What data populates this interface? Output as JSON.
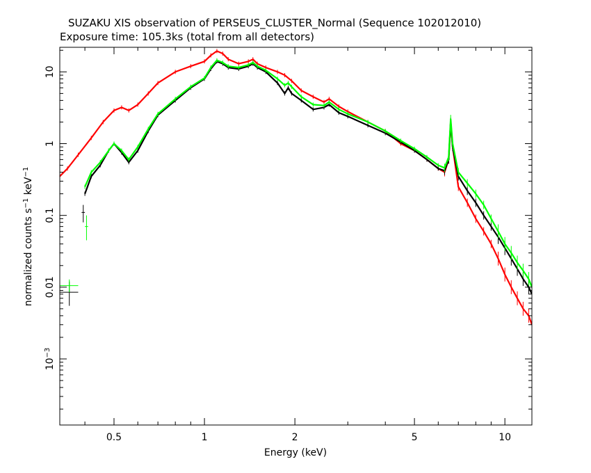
{
  "chart_data": {
    "type": "line",
    "title": "SUZAKU XIS observation of PERSEUS_CLUSTER_Normal (Sequence 102012010)",
    "subtitle": "Exposure time: 105.3ks (total from all detectors)",
    "xlabel": "Energy (keV)",
    "ylabel": "normalized counts s⁻¹ keV⁻¹",
    "ylabel_parts": {
      "a": "normalized counts s",
      "sup1": "−1",
      "b": " keV",
      "sup2": "−1"
    },
    "xscale": "log",
    "yscale": "log",
    "xlim": [
      0.33,
      12.3
    ],
    "ylim": [
      0.00012,
      22
    ],
    "xticks": [
      {
        "value": 0.5,
        "label": "0.5"
      },
      {
        "value": 1,
        "label": "1"
      },
      {
        "value": 2,
        "label": "2"
      },
      {
        "value": 5,
        "label": "5"
      },
      {
        "value": 10,
        "label": "10"
      }
    ],
    "yticks": [
      {
        "value": 10,
        "label": "10",
        "sup": ""
      },
      {
        "value": 1,
        "label": "1",
        "sup": ""
      },
      {
        "value": 0.1,
        "label": "0.1",
        "sup": ""
      },
      {
        "value": 0.01,
        "label": "0.01",
        "sup": ""
      },
      {
        "value": 0.001,
        "label": "10",
        "sup": "−3"
      }
    ],
    "grid": false,
    "series": [
      {
        "color": "#ff0000",
        "x": [
          0.33,
          0.35,
          0.38,
          0.42,
          0.46,
          0.5,
          0.53,
          0.56,
          0.6,
          0.65,
          0.7,
          0.8,
          0.9,
          1.0,
          1.05,
          1.1,
          1.15,
          1.2,
          1.3,
          1.4,
          1.45,
          1.5,
          1.6,
          1.75,
          1.85,
          1.95,
          2.1,
          2.3,
          2.5,
          2.6,
          2.8,
          3.0,
          3.5,
          4.0,
          4.5,
          5.0,
          5.5,
          6.0,
          6.3,
          6.5,
          6.6,
          6.7,
          7.0,
          7.5,
          8.0,
          8.5,
          9.0,
          9.5,
          10.0,
          10.5,
          11.0,
          11.5,
          12.0,
          12.3
        ],
        "y": [
          0.35,
          0.45,
          0.7,
          1.2,
          2.0,
          2.9,
          3.2,
          2.9,
          3.5,
          5.0,
          7.0,
          10.0,
          12.0,
          14.0,
          17.0,
          19.5,
          18.0,
          15.0,
          13.0,
          14.0,
          15.0,
          13.0,
          11.5,
          10.0,
          9.0,
          7.5,
          5.5,
          4.5,
          3.8,
          4.2,
          3.3,
          2.8,
          2.0,
          1.5,
          1.0,
          0.8,
          0.6,
          0.45,
          0.4,
          0.6,
          2.0,
          0.9,
          0.25,
          0.15,
          0.09,
          0.06,
          0.04,
          0.025,
          0.015,
          0.01,
          0.007,
          0.005,
          0.004,
          0.003
        ]
      },
      {
        "color": "#000000",
        "x": [
          0.4,
          0.42,
          0.45,
          0.48,
          0.5,
          0.53,
          0.56,
          0.6,
          0.65,
          0.7,
          0.8,
          0.9,
          1.0,
          1.05,
          1.1,
          1.15,
          1.2,
          1.3,
          1.4,
          1.45,
          1.5,
          1.6,
          1.75,
          1.85,
          1.9,
          1.95,
          2.1,
          2.3,
          2.5,
          2.6,
          2.8,
          3.0,
          3.5,
          4.0,
          4.5,
          5.0,
          5.5,
          6.0,
          6.3,
          6.5,
          6.6,
          6.7,
          7.0,
          7.5,
          8.0,
          8.5,
          9.0,
          9.5,
          10.0,
          10.5,
          11.0,
          11.5,
          12.0,
          12.3
        ],
        "y": [
          0.2,
          0.35,
          0.5,
          0.8,
          1.0,
          0.75,
          0.55,
          0.8,
          1.5,
          2.5,
          4.0,
          6.0,
          8.0,
          11.0,
          14.0,
          13.0,
          11.5,
          11.0,
          12.0,
          13.0,
          11.5,
          10.0,
          7.0,
          5.0,
          6.0,
          5.0,
          4.0,
          3.0,
          3.2,
          3.5,
          2.7,
          2.4,
          1.8,
          1.4,
          1.05,
          0.8,
          0.6,
          0.45,
          0.42,
          0.6,
          2.0,
          0.9,
          0.35,
          0.22,
          0.15,
          0.1,
          0.07,
          0.05,
          0.035,
          0.025,
          0.018,
          0.013,
          0.01,
          0.008
        ]
      },
      {
        "color": "#00ff00",
        "x": [
          0.4,
          0.42,
          0.45,
          0.48,
          0.5,
          0.53,
          0.56,
          0.6,
          0.65,
          0.7,
          0.8,
          0.9,
          1.0,
          1.05,
          1.1,
          1.15,
          1.2,
          1.3,
          1.4,
          1.45,
          1.5,
          1.6,
          1.75,
          1.85,
          1.9,
          1.95,
          2.1,
          2.3,
          2.5,
          2.6,
          2.8,
          3.0,
          3.5,
          4.0,
          4.5,
          5.0,
          5.5,
          6.0,
          6.3,
          6.5,
          6.6,
          6.7,
          7.0,
          7.5,
          8.0,
          8.5,
          9.0,
          9.5,
          10.0,
          10.5,
          11.0,
          11.5,
          12.0,
          12.3
        ],
        "y": [
          0.25,
          0.4,
          0.55,
          0.8,
          1.0,
          0.8,
          0.6,
          0.9,
          1.6,
          2.6,
          4.2,
          6.2,
          8.2,
          11.5,
          14.5,
          13.5,
          12.0,
          11.5,
          12.5,
          13.5,
          12.0,
          10.5,
          8.0,
          6.5,
          7.0,
          6.2,
          4.5,
          3.5,
          3.4,
          3.8,
          3.0,
          2.6,
          2.0,
          1.5,
          1.1,
          0.85,
          0.65,
          0.5,
          0.46,
          0.65,
          2.2,
          1.0,
          0.4,
          0.28,
          0.2,
          0.14,
          0.09,
          0.06,
          0.04,
          0.03,
          0.022,
          0.017,
          0.013,
          0.01
        ]
      }
    ],
    "low_energy_points": [
      {
        "color": "#000000",
        "x": 0.355,
        "y": 0.0085,
        "xlo": 0.33,
        "xhi": 0.38,
        "ylo": 0.0055,
        "yhi": 0.012
      },
      {
        "color": "#00ff00",
        "x": 0.355,
        "y": 0.0105,
        "xlo": 0.33,
        "xhi": 0.38,
        "ylo": 0.0085,
        "yhi": 0.0128
      },
      {
        "color": "#000000",
        "x": 0.395,
        "y": 0.11,
        "xlo": 0.39,
        "xhi": 0.4,
        "ylo": 0.08,
        "yhi": 0.14
      },
      {
        "color": "#00ff00",
        "x": 0.405,
        "y": 0.07,
        "xlo": 0.4,
        "xhi": 0.41,
        "ylo": 0.045,
        "yhi": 0.1
      }
    ]
  }
}
